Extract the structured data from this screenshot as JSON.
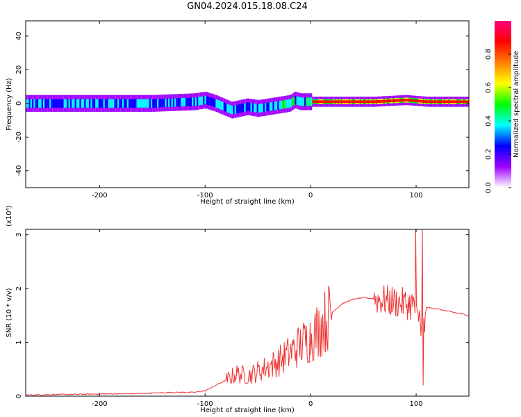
{
  "title": "GN04.2024.015.18.08.C24",
  "chart_data": [
    {
      "type": "heatmap",
      "xlabel": "Height of straight line (km)",
      "ylabel": "Frequency (Hz)",
      "xlim": [
        -270,
        150
      ],
      "ylim": [
        -50,
        49
      ],
      "xticks": [
        -200,
        -100,
        0,
        100
      ],
      "yticks": [
        -40,
        -20,
        0,
        20,
        40
      ],
      "colorbar": {
        "label": "Normalized spectral amplitude",
        "range": [
          0,
          1
        ],
        "ticks": [
          "0.0",
          "0.2",
          "0.4",
          "0.6",
          "0.8"
        ],
        "colors": [
          "#ffffff",
          "#a000ff",
          "#0000ff",
          "#00ffff",
          "#00ff00",
          "#ffff00",
          "#ff8000",
          "#ff0000",
          "#ff0080"
        ]
      },
      "ridge_frequency_hz": {
        "x": [
          -270,
          -200,
          -150,
          -110,
          -100,
          -90,
          -75,
          -60,
          -50,
          -40,
          -30,
          -20,
          -15,
          -10,
          0,
          20,
          60,
          90,
          110,
          150
        ],
        "y": [
          0,
          0,
          0,
          1,
          2,
          0,
          -4,
          -2,
          -3,
          -2,
          -1,
          0,
          2,
          1,
          1,
          1,
          1,
          2,
          1,
          1
        ]
      },
      "grid": false
    },
    {
      "type": "line",
      "xlabel": "Height of straight line (km)",
      "ylabel": "SNR (10 * v/v)",
      "y_multiplier": "(x10⁴)",
      "xlim": [
        -270,
        150
      ],
      "ylim": [
        0,
        3.1
      ],
      "xticks": [
        -200,
        -100,
        0,
        100
      ],
      "yticks": [
        0,
        1,
        2,
        3
      ],
      "color": "#ee3333",
      "series": [
        {
          "x": [
            -270,
            -240,
            -200,
            -160,
            -130,
            -110,
            -100,
            -90,
            -80,
            -70,
            -60,
            -50,
            -40,
            -30,
            -20,
            -10,
            0,
            10,
            20,
            30,
            40,
            50,
            60,
            70,
            80,
            90,
            95,
            100,
            105,
            110,
            120,
            130,
            140,
            150
          ],
          "y": [
            0.02,
            0.03,
            0.04,
            0.05,
            0.07,
            0.07,
            0.1,
            0.2,
            0.3,
            0.42,
            0.38,
            0.46,
            0.55,
            0.65,
            0.8,
            0.95,
            1.1,
            1.3,
            1.55,
            1.72,
            1.8,
            1.83,
            1.81,
            1.78,
            1.75,
            1.72,
            1.7,
            1.6,
            1.2,
            1.65,
            1.62,
            1.58,
            1.54,
            1.5
          ]
        }
      ],
      "grid": false
    }
  ]
}
